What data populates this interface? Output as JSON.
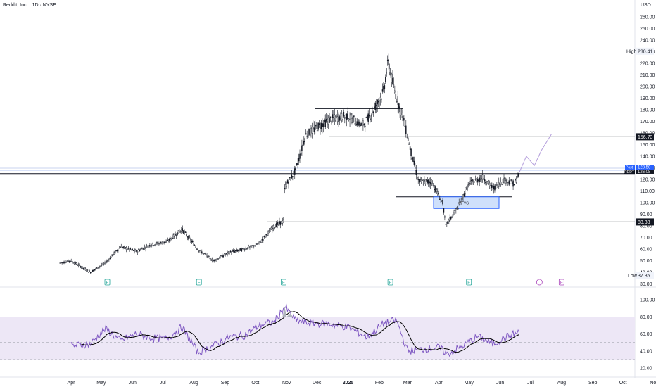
{
  "header": {
    "title": "Reddit, Inc. · 1D · NYSE",
    "currency": "USD"
  },
  "price_axis": {
    "ticks": [
      "260.00",
      "250.00",
      "240.00",
      "230.00",
      "220.00",
      "210.00",
      "200.00",
      "190.00",
      "180.00",
      "170.00",
      "160.00",
      "150.00",
      "140.00",
      "130.00",
      "120.00",
      "110.00",
      "100.00",
      "90.00",
      "80.00",
      "70.00",
      "60.00",
      "50.00",
      "40.00",
      "30.00"
    ],
    "tick_values": [
      260,
      250,
      240,
      230,
      220,
      210,
      200,
      190,
      180,
      170,
      160,
      150,
      140,
      130,
      120,
      110,
      100,
      90,
      80,
      70,
      60,
      50,
      40,
      30
    ]
  },
  "rsi_axis": {
    "ticks": [
      "100.00",
      "80.00",
      "60.00",
      "40.00",
      "20.00"
    ],
    "tick_values": [
      100,
      80,
      60,
      40,
      20
    ]
  },
  "time_axis": {
    "months": [
      "Apr",
      "May",
      "Jun",
      "Jul",
      "Aug",
      "Sep",
      "Oct",
      "Nov",
      "Dec",
      "2025",
      "Feb",
      "Mar",
      "Apr",
      "May",
      "Jun",
      "Jul",
      "Aug",
      "Sep",
      "Oct",
      "Nov"
    ]
  },
  "tags": {
    "high": {
      "label": "High",
      "value": "230.41"
    },
    "low": {
      "label": "Low",
      "value": "37.35"
    },
    "level_1": {
      "value": "156.73"
    },
    "level_2": {
      "value": "83.38"
    },
    "post": {
      "label": "Post",
      "value": "128.50"
    },
    "reddit": {
      "label": "RDDT",
      "value": "126.08"
    },
    "fvg": "FVG"
  },
  "markers": {
    "earnings_letter": "E"
  },
  "colors": {
    "up": "#131722",
    "down": "#131722",
    "rsi_line": "#7e57c2",
    "rsi_ma": "#000000",
    "rsi_band": "#ede7f6",
    "fvg_fill": "#cfe0fb",
    "fvg_border": "#2962ff",
    "earnings_green": "#26a69a",
    "earnings_purple": "#ab47bc",
    "post_tag": "#2962ff"
  },
  "chart_data": [
    {
      "type": "line",
      "title": "Reddit, Inc. · 1D · NYSE",
      "x": [
        "2024-03-21",
        "2024-04-01",
        "2024-04-20",
        "2024-05-05",
        "2024-05-20",
        "2024-06-05",
        "2024-06-20",
        "2024-07-05",
        "2024-07-20",
        "2024-08-05",
        "2024-08-20",
        "2024-09-05",
        "2024-09-20",
        "2024-10-05",
        "2024-10-20",
        "2024-10-29",
        "2024-10-30",
        "2024-11-10",
        "2024-11-20",
        "2024-12-01",
        "2024-12-15",
        "2025-01-01",
        "2025-01-15",
        "2025-01-25",
        "2025-02-05",
        "2025-02-10",
        "2025-02-15",
        "2025-02-25",
        "2025-03-05",
        "2025-03-12",
        "2025-03-25",
        "2025-04-05",
        "2025-04-08",
        "2025-04-20",
        "2025-05-01",
        "2025-05-15",
        "2025-05-25",
        "2025-06-05",
        "2025-06-15",
        "2025-06-20"
      ],
      "y": [
        48,
        50,
        40,
        48,
        62,
        58,
        64,
        66,
        77,
        60,
        50,
        57,
        60,
        65,
        80,
        84,
        113,
        128,
        158,
        165,
        172,
        175,
        166,
        178,
        195,
        222,
        200,
        172,
        142,
        118,
        118,
        100,
        80,
        96,
        116,
        122,
        112,
        120,
        116,
        126
      ],
      "ylim": [
        30,
        260
      ],
      "annotations": {
        "high": 230.41,
        "low": 37.35,
        "levels": [
          156.73,
          125,
          105,
          83.38,
          181
        ],
        "fvg_range": [
          95,
          105
        ],
        "post": 128.5
      },
      "projection": {
        "x": [
          "2025-06-20",
          "2025-06-27",
          "2025-07-05",
          "2025-07-12",
          "2025-07-22"
        ],
        "y": [
          126,
          140,
          132,
          145,
          159
        ]
      }
    },
    {
      "type": "line",
      "title": "",
      "x": [
        "2024-04-01",
        "2024-04-20",
        "2024-05-05",
        "2024-05-20",
        "2024-06-05",
        "2024-06-20",
        "2024-07-05",
        "2024-07-20",
        "2024-08-05",
        "2024-08-20",
        "2024-09-05",
        "2024-09-20",
        "2024-10-05",
        "2024-10-20",
        "2024-10-30",
        "2024-11-10",
        "2024-11-25",
        "2024-12-10",
        "2025-01-01",
        "2025-01-20",
        "2025-02-05",
        "2025-02-18",
        "2025-03-01",
        "2025-03-15",
        "2025-04-01",
        "2025-04-10",
        "2025-04-25",
        "2025-05-10",
        "2025-05-25",
        "2025-06-10",
        "2025-06-20"
      ],
      "y": [
        46,
        48,
        66,
        52,
        60,
        55,
        54,
        68,
        38,
        46,
        56,
        58,
        70,
        74,
        92,
        76,
        72,
        72,
        68,
        56,
        72,
        76,
        40,
        42,
        44,
        36,
        46,
        57,
        48,
        58,
        62
      ],
      "ylim": [
        20,
        100
      ],
      "bands": [
        30,
        50,
        70,
        80
      ]
    }
  ]
}
